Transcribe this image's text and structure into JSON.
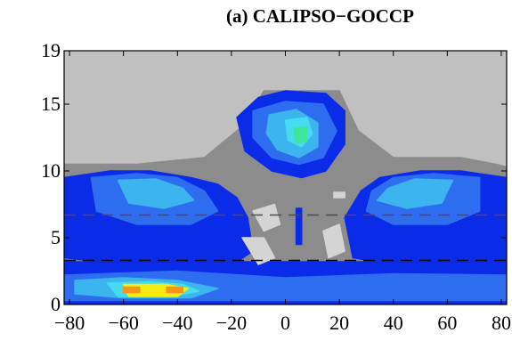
{
  "chart_data": {
    "type": "heatmap",
    "title": "(a) CALIPSO−GOCCP",
    "xlim": [
      -82,
      82
    ],
    "ylim": [
      0,
      19
    ],
    "x_ticks": [
      -80,
      -60,
      -40,
      -20,
      0,
      20,
      40,
      60,
      80
    ],
    "x_tick_labels": [
      "−80",
      "−60",
      "−40",
      "−20",
      "0",
      "20",
      "40",
      "60",
      "80"
    ],
    "y_ticks": [
      0,
      5,
      10,
      15,
      19
    ],
    "y_tick_labels": [
      "0",
      "5",
      "10",
      "15",
      "19"
    ],
    "reference_lines": [
      {
        "y": 3.3,
        "style": "dashed",
        "color": "#000000"
      },
      {
        "y": 6.7,
        "style": "dashed",
        "color": "#4d4d4d"
      }
    ],
    "colors": {
      "background": "#c0c0c0",
      "medium_gray": "#8c8c8c",
      "light_gray": "#d4d4d4",
      "deep_blue": "#0a2be8",
      "mid_blue": "#2f6df0",
      "light_blue": "#3cb4ee",
      "cyan": "#44dcee",
      "green": "#3ee69a",
      "yellow": "#f5ec13",
      "orange": "#f6941c"
    },
    "regions": [
      {
        "level": "medium_gray",
        "polygon": [
          [
            -82,
            10.5
          ],
          [
            -55,
            10.5
          ],
          [
            -30,
            11
          ],
          [
            -15,
            13.5
          ],
          [
            -8,
            16
          ],
          [
            20,
            16
          ],
          [
            27,
            13
          ],
          [
            40,
            11
          ],
          [
            65,
            11
          ],
          [
            78,
            10.5
          ],
          [
            82,
            10.3
          ],
          [
            82,
            0
          ],
          [
            -82,
            0
          ]
        ]
      },
      {
        "level": "deep_blue",
        "polygon": [
          [
            -82,
            9.5
          ],
          [
            -65,
            10
          ],
          [
            -50,
            10
          ],
          [
            -35,
            9.5
          ],
          [
            -25,
            9
          ],
          [
            -18,
            8
          ],
          [
            -14,
            6.5
          ],
          [
            -12,
            4
          ],
          [
            -18,
            3.2
          ],
          [
            -40,
            3
          ],
          [
            -60,
            3
          ],
          [
            -82,
            3.5
          ]
        ]
      },
      {
        "level": "deep_blue",
        "polygon": [
          [
            82,
            9.5
          ],
          [
            65,
            10
          ],
          [
            50,
            10
          ],
          [
            35,
            9.5
          ],
          [
            28,
            8.5
          ],
          [
            22,
            6.5
          ],
          [
            25,
            3.5
          ],
          [
            40,
            3
          ],
          [
            60,
            3
          ],
          [
            82,
            3.2
          ]
        ]
      },
      {
        "level": "deep_blue",
        "polygon": [
          [
            -82,
            3.2
          ],
          [
            82,
            3.2
          ],
          [
            82,
            0
          ],
          [
            -82,
            0
          ]
        ]
      },
      {
        "level": "deep_blue",
        "polygon": [
          [
            -18,
            14
          ],
          [
            -10,
            15.5
          ],
          [
            0,
            16
          ],
          [
            15,
            15.8
          ],
          [
            22,
            14.5
          ],
          [
            22,
            12
          ],
          [
            15,
            10
          ],
          [
            6,
            9.5
          ],
          [
            -5,
            10
          ],
          [
            -15,
            11.5
          ]
        ]
      },
      {
        "level": "mid_blue",
        "polygon": [
          [
            -72,
            9.5
          ],
          [
            -55,
            9.8
          ],
          [
            -40,
            9.5
          ],
          [
            -30,
            8.5
          ],
          [
            -25,
            7
          ],
          [
            -35,
            6
          ],
          [
            -55,
            6
          ],
          [
            -70,
            7
          ]
        ]
      },
      {
        "level": "mid_blue",
        "polygon": [
          [
            72,
            9.5
          ],
          [
            55,
            9.8
          ],
          [
            40,
            9.5
          ],
          [
            32,
            8.5
          ],
          [
            30,
            7
          ],
          [
            40,
            6
          ],
          [
            60,
            6
          ],
          [
            72,
            7
          ]
        ]
      },
      {
        "level": "mid_blue",
        "polygon": [
          [
            -12,
            14.5
          ],
          [
            0,
            15.2
          ],
          [
            14,
            15
          ],
          [
            19,
            13
          ],
          [
            14,
            11
          ],
          [
            5,
            10.5
          ],
          [
            -5,
            11
          ],
          [
            -12,
            12.5
          ]
        ]
      },
      {
        "level": "mid_blue",
        "polygon": [
          [
            -82,
            2.2
          ],
          [
            -40,
            2.5
          ],
          [
            0,
            2
          ],
          [
            40,
            2.3
          ],
          [
            82,
            2.2
          ],
          [
            82,
            0.3
          ],
          [
            -82,
            0.3
          ]
        ]
      },
      {
        "level": "light_blue",
        "polygon": [
          [
            -62,
            9.3
          ],
          [
            -48,
            9.4
          ],
          [
            -38,
            8.7
          ],
          [
            -34,
            7.8
          ],
          [
            -45,
            7.2
          ],
          [
            -58,
            7.6
          ]
        ]
      },
      {
        "level": "light_blue",
        "polygon": [
          [
            62,
            9.3
          ],
          [
            48,
            9.4
          ],
          [
            38,
            8.7
          ],
          [
            34,
            7.8
          ],
          [
            45,
            7.2
          ],
          [
            58,
            7.6
          ]
        ]
      },
      {
        "level": "light_blue",
        "polygon": [
          [
            -6,
            14.2
          ],
          [
            4,
            14.6
          ],
          [
            12,
            13.6
          ],
          [
            12,
            11.8
          ],
          [
            5,
            11
          ],
          [
            -3,
            11.6
          ],
          [
            -7,
            12.8
          ]
        ]
      },
      {
        "level": "light_blue",
        "polygon": [
          [
            -78,
            1.8
          ],
          [
            -60,
            2
          ],
          [
            -40,
            1.8
          ],
          [
            -25,
            1.2
          ],
          [
            -35,
            0.5
          ],
          [
            -60,
            0.5
          ],
          [
            -78,
            0.8
          ]
        ]
      },
      {
        "level": "cyan",
        "polygon": [
          [
            0,
            13.8
          ],
          [
            8,
            14
          ],
          [
            10,
            12.8
          ],
          [
            6,
            11.8
          ],
          [
            1,
            12.3
          ]
        ]
      },
      {
        "level": "green",
        "polygon": [
          [
            3,
            13.2
          ],
          [
            8,
            13.3
          ],
          [
            8,
            12.2
          ],
          [
            4,
            12.1
          ]
        ]
      },
      {
        "level": "cyan",
        "polygon": [
          [
            -66,
            1.6
          ],
          [
            -50,
            1.7
          ],
          [
            -38,
            1.5
          ],
          [
            -32,
            1
          ],
          [
            -42,
            0.6
          ],
          [
            -62,
            0.6
          ]
        ]
      },
      {
        "level": "yellow",
        "polygon": [
          [
            -60,
            1.5
          ],
          [
            -44,
            1.5
          ],
          [
            -36,
            1.2
          ],
          [
            -40,
            0.6
          ],
          [
            -58,
            0.6
          ]
        ]
      },
      {
        "level": "orange",
        "polygon": [
          [
            -60,
            1.3
          ],
          [
            -54,
            1.3
          ],
          [
            -54,
            0.9
          ],
          [
            -60,
            0.9
          ]
        ]
      },
      {
        "level": "orange",
        "polygon": [
          [
            -44,
            1.3
          ],
          [
            -38,
            1.3
          ],
          [
            -38,
            0.9
          ],
          [
            -44,
            0.9
          ]
        ]
      },
      {
        "level": "light_gray",
        "polygon": [
          [
            -12,
            7
          ],
          [
            -4,
            7.5
          ],
          [
            -2,
            6
          ],
          [
            -8,
            5.5
          ]
        ]
      },
      {
        "level": "light_gray",
        "polygon": [
          [
            -16,
            5
          ],
          [
            -8,
            5
          ],
          [
            -4,
            3.5
          ],
          [
            -10,
            3
          ]
        ]
      },
      {
        "level": "light_gray",
        "polygon": [
          [
            14,
            5.5
          ],
          [
            20,
            6
          ],
          [
            22,
            4
          ],
          [
            16,
            3.5
          ]
        ]
      },
      {
        "level": "light_gray",
        "polygon": [
          [
            18,
            8.4
          ],
          [
            22,
            8.4
          ],
          [
            22,
            8
          ],
          [
            18,
            8
          ]
        ]
      },
      {
        "level": "deep_blue",
        "polygon": [
          [
            4,
            7.2
          ],
          [
            6,
            7.2
          ],
          [
            6,
            4.5
          ],
          [
            4,
            4.5
          ]
        ]
      }
    ]
  }
}
